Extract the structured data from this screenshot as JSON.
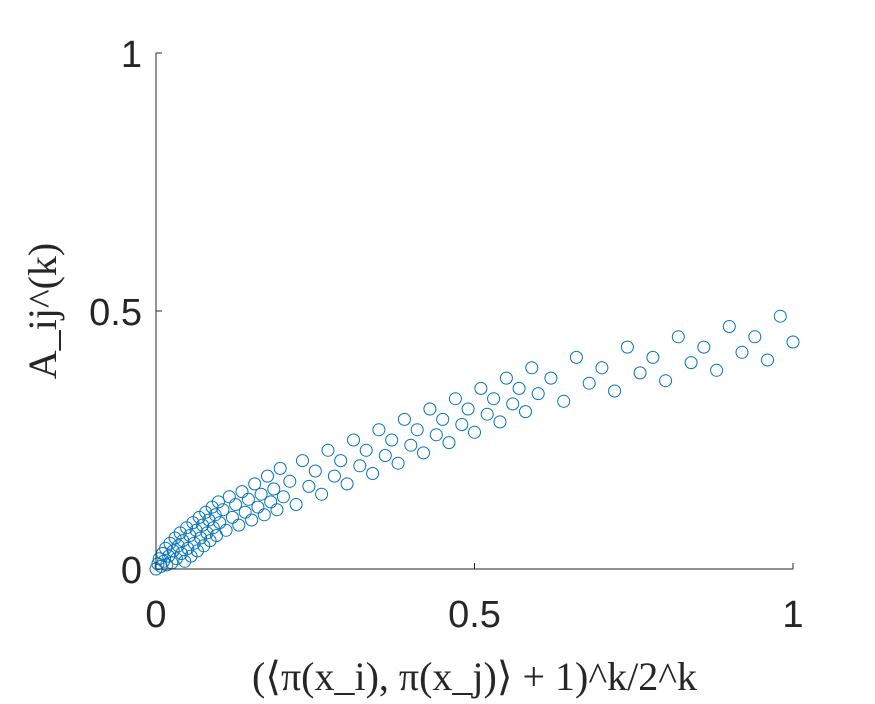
{
  "chart_data": {
    "type": "scatter",
    "title": "",
    "xlabel": "(⟨π(x_i), π(x_j)⟩ + 1)^k/2^k",
    "ylabel": "A_ij^(k)",
    "xlim": [
      0,
      1
    ],
    "ylim": [
      0,
      1
    ],
    "xticks": [
      0,
      0.5,
      1
    ],
    "yticks": [
      0,
      0.5,
      1
    ],
    "xtick_labels": [
      "0",
      "0.5",
      "1"
    ],
    "ytick_labels": [
      "0",
      "0.5",
      "1"
    ],
    "grid": false,
    "marker": "open-circle",
    "marker_color": "#0072BD",
    "axis_color": "#262626",
    "series": [
      {
        "points": [
          [
            0.0,
            0.0
          ],
          [
            0.003,
            0.01
          ],
          [
            0.005,
            0.02
          ],
          [
            0.008,
            0.005
          ],
          [
            0.01,
            0.03
          ],
          [
            0.012,
            0.015
          ],
          [
            0.015,
            0.04
          ],
          [
            0.017,
            0.008
          ],
          [
            0.02,
            0.025
          ],
          [
            0.022,
            0.05
          ],
          [
            0.025,
            0.012
          ],
          [
            0.027,
            0.035
          ],
          [
            0.03,
            0.06
          ],
          [
            0.032,
            0.02
          ],
          [
            0.035,
            0.045
          ],
          [
            0.038,
            0.07
          ],
          [
            0.04,
            0.03
          ],
          [
            0.042,
            0.055
          ],
          [
            0.045,
            0.015
          ],
          [
            0.048,
            0.08
          ],
          [
            0.05,
            0.04
          ],
          [
            0.053,
            0.065
          ],
          [
            0.055,
            0.025
          ],
          [
            0.058,
            0.09
          ],
          [
            0.06,
            0.05
          ],
          [
            0.063,
            0.075
          ],
          [
            0.065,
            0.035
          ],
          [
            0.068,
            0.1
          ],
          [
            0.07,
            0.06
          ],
          [
            0.073,
            0.085
          ],
          [
            0.075,
            0.045
          ],
          [
            0.078,
            0.11
          ],
          [
            0.08,
            0.07
          ],
          [
            0.083,
            0.095
          ],
          [
            0.085,
            0.055
          ],
          [
            0.088,
            0.12
          ],
          [
            0.09,
            0.08
          ],
          [
            0.093,
            0.105
          ],
          [
            0.095,
            0.065
          ],
          [
            0.098,
            0.13
          ],
          [
            0.1,
            0.09
          ],
          [
            0.105,
            0.115
          ],
          [
            0.11,
            0.075
          ],
          [
            0.115,
            0.14
          ],
          [
            0.12,
            0.1
          ],
          [
            0.125,
            0.125
          ],
          [
            0.13,
            0.085
          ],
          [
            0.135,
            0.15
          ],
          [
            0.14,
            0.11
          ],
          [
            0.145,
            0.135
          ],
          [
            0.15,
            0.095
          ],
          [
            0.155,
            0.165
          ],
          [
            0.16,
            0.12
          ],
          [
            0.165,
            0.145
          ],
          [
            0.17,
            0.105
          ],
          [
            0.175,
            0.18
          ],
          [
            0.18,
            0.13
          ],
          [
            0.185,
            0.155
          ],
          [
            0.19,
            0.115
          ],
          [
            0.195,
            0.195
          ],
          [
            0.2,
            0.14
          ],
          [
            0.21,
            0.17
          ],
          [
            0.22,
            0.125
          ],
          [
            0.23,
            0.21
          ],
          [
            0.24,
            0.16
          ],
          [
            0.25,
            0.19
          ],
          [
            0.26,
            0.145
          ],
          [
            0.27,
            0.23
          ],
          [
            0.28,
            0.18
          ],
          [
            0.29,
            0.21
          ],
          [
            0.3,
            0.165
          ],
          [
            0.31,
            0.25
          ],
          [
            0.32,
            0.2
          ],
          [
            0.33,
            0.23
          ],
          [
            0.34,
            0.185
          ],
          [
            0.35,
            0.27
          ],
          [
            0.36,
            0.22
          ],
          [
            0.37,
            0.25
          ],
          [
            0.38,
            0.205
          ],
          [
            0.39,
            0.29
          ],
          [
            0.4,
            0.24
          ],
          [
            0.41,
            0.27
          ],
          [
            0.42,
            0.225
          ],
          [
            0.43,
            0.31
          ],
          [
            0.44,
            0.26
          ],
          [
            0.45,
            0.29
          ],
          [
            0.46,
            0.245
          ],
          [
            0.47,
            0.33
          ],
          [
            0.48,
            0.28
          ],
          [
            0.49,
            0.31
          ],
          [
            0.5,
            0.265
          ],
          [
            0.51,
            0.35
          ],
          [
            0.52,
            0.3
          ],
          [
            0.53,
            0.33
          ],
          [
            0.54,
            0.285
          ],
          [
            0.55,
            0.37
          ],
          [
            0.56,
            0.32
          ],
          [
            0.57,
            0.35
          ],
          [
            0.58,
            0.305
          ],
          [
            0.59,
            0.39
          ],
          [
            0.6,
            0.34
          ],
          [
            0.62,
            0.37
          ],
          [
            0.64,
            0.325
          ],
          [
            0.66,
            0.41
          ],
          [
            0.68,
            0.36
          ],
          [
            0.7,
            0.39
          ],
          [
            0.72,
            0.345
          ],
          [
            0.74,
            0.43
          ],
          [
            0.76,
            0.38
          ],
          [
            0.78,
            0.41
          ],
          [
            0.8,
            0.365
          ],
          [
            0.82,
            0.45
          ],
          [
            0.84,
            0.4
          ],
          [
            0.86,
            0.43
          ],
          [
            0.88,
            0.385
          ],
          [
            0.9,
            0.47
          ],
          [
            0.92,
            0.42
          ],
          [
            0.94,
            0.45
          ],
          [
            0.96,
            0.405
          ],
          [
            0.98,
            0.49
          ],
          [
            1.0,
            0.44
          ]
        ]
      }
    ]
  }
}
